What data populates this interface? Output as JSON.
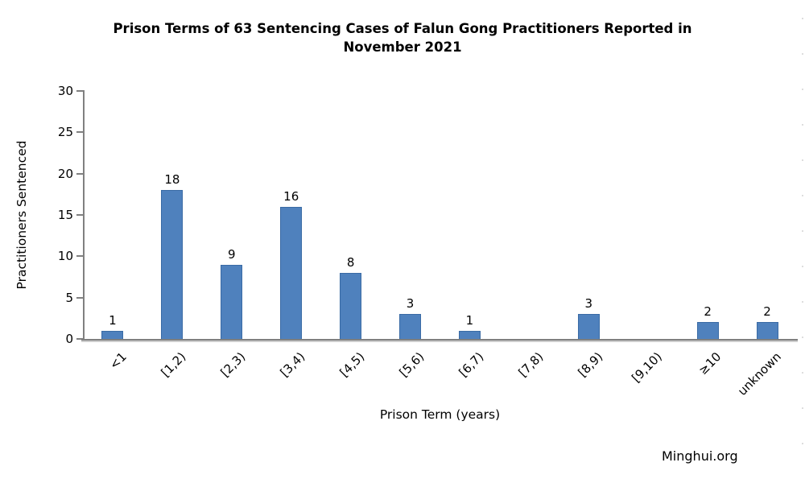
{
  "title": {
    "lines": [
      "Prison Terms of 63 Sentencing Cases of Falun Gong Practitioners Reported in",
      "November 2021"
    ]
  },
  "watermark": "Minghui.org",
  "chart_data": {
    "type": "bar",
    "title": "Prison Terms of 63 Sentencing Cases of Falun Gong Practitioners Reported in November 2021",
    "categories": [
      "<1",
      "[1,2)",
      "[2,3)",
      "[3,4)",
      "[4,5)",
      "[5,6)",
      "[6,7)",
      "[7,8)",
      "[8,9)",
      "[9,10)",
      "≥10",
      "unknown"
    ],
    "values": [
      1,
      18,
      9,
      16,
      8,
      3,
      1,
      0,
      3,
      0,
      2,
      2
    ],
    "xlabel": "Prison Term (years)",
    "ylabel": "Practitioners Sentenced",
    "ylim": [
      0,
      30
    ],
    "yticks": [
      0,
      5,
      10,
      15,
      20,
      25,
      30
    ],
    "grid": false,
    "legend_position": "none",
    "data_labels": true,
    "bar_color": "#4F81BD",
    "bar_border_color": "#3A6BA5",
    "axis_color": "#808080",
    "text_color": "#000000"
  }
}
